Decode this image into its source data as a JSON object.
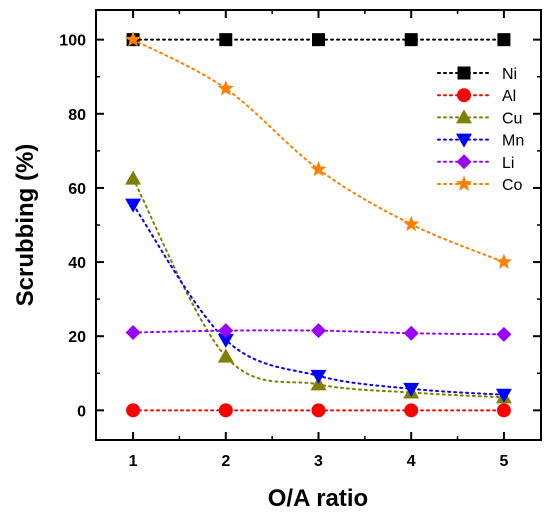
{
  "chart_data": {
    "type": "line",
    "xlabel": "O/A ratio",
    "ylabel": "Scrubbing (%)",
    "x": [
      1,
      2,
      3,
      4,
      5
    ],
    "xlim": [
      0.6,
      5.4
    ],
    "ylim": [
      -8,
      108
    ],
    "xticks": [
      1,
      2,
      3,
      4,
      5
    ],
    "yticks": [
      0,
      20,
      40,
      60,
      80,
      100
    ],
    "grid": false,
    "legend_position": "top-right",
    "line_style": "dotted",
    "series": [
      {
        "name": "Ni",
        "values": [
          100,
          100,
          100,
          100,
          100
        ],
        "color": "#000000",
        "marker": "square"
      },
      {
        "name": "Al",
        "values": [
          0,
          0,
          0,
          0,
          0
        ],
        "color": "#ff0000",
        "marker": "circle"
      },
      {
        "name": "Cu",
        "values": [
          62.5,
          14.5,
          7,
          4.8,
          3.5
        ],
        "color": "#808000",
        "marker": "triangle-up"
      },
      {
        "name": "Mn",
        "values": [
          55.5,
          19,
          9.3,
          5.8,
          4.2
        ],
        "color": "#0000ff",
        "marker": "triangle-down"
      },
      {
        "name": "Li",
        "values": [
          21,
          21.5,
          21.5,
          20.8,
          20.5
        ],
        "color": "#9900ff",
        "marker": "diamond"
      },
      {
        "name": "Co",
        "values": [
          100,
          86.8,
          65,
          50.2,
          40
        ],
        "color": "#ff8000",
        "marker": "star"
      }
    ]
  }
}
